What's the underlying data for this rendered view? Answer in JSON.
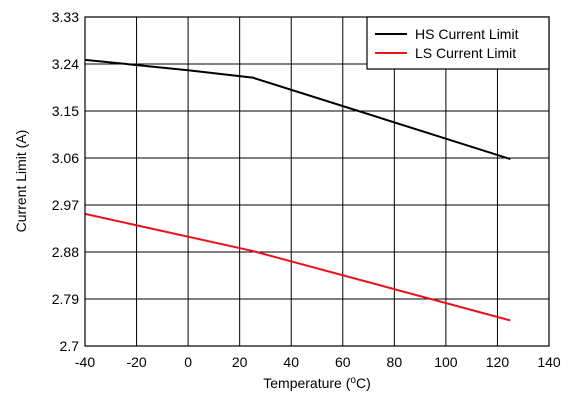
{
  "chart_data": {
    "type": "line",
    "xlabel_prefix": "Temperature (",
    "xlabel_sup": "o",
    "xlabel_suffix": "C)",
    "ylabel": "Current Limit (A)",
    "xlim": [
      -40,
      140
    ],
    "ylim": [
      2.7,
      3.33
    ],
    "x_ticks": [
      -40,
      -20,
      0,
      20,
      40,
      60,
      80,
      100,
      120,
      140
    ],
    "x_tick_labels": [
      "-40",
      "-20",
      "0",
      "20",
      "40",
      "60",
      "80",
      "100",
      "120",
      "140"
    ],
    "y_ticks": [
      2.7,
      2.79,
      2.88,
      2.97,
      3.06,
      3.15,
      3.24,
      3.33
    ],
    "y_tick_labels": [
      "2.7",
      "2.79",
      "2.88",
      "2.97",
      "3.06",
      "3.15",
      "3.24",
      "3.33"
    ],
    "grid": true,
    "legend_position": "top-right",
    "series": [
      {
        "name": "HS Current Limit",
        "color": "#000000",
        "x": [
          -40,
          0,
          25,
          125
        ],
        "y": [
          3.248,
          3.228,
          3.214,
          3.058
        ]
      },
      {
        "name": "LS Current Limit",
        "color": "#e8141b",
        "x": [
          -40,
          25,
          125
        ],
        "y": [
          2.953,
          2.882,
          2.749
        ]
      }
    ]
  }
}
